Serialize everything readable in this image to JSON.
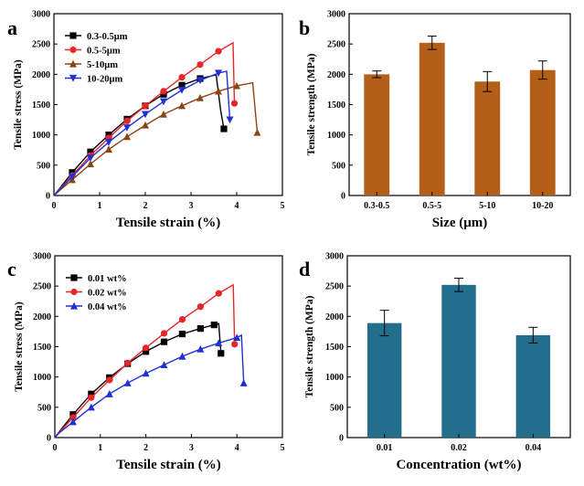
{
  "chart_data": [
    {
      "panel": "a",
      "type": "line",
      "xlabel": "Tensile strain (%)",
      "ylabel": "Tensile stress (MPa)",
      "xlim": [
        0,
        5
      ],
      "ylim": [
        0,
        3000
      ],
      "xticks": [
        0,
        1,
        2,
        3,
        4,
        5
      ],
      "yticks": [
        0,
        500,
        1000,
        1500,
        2000,
        2500,
        3000
      ],
      "legend_position": "top-left",
      "series": [
        {
          "name": "0.3-0.5μm",
          "color": "#000000",
          "marker": "square",
          "x": [
            0,
            0.12,
            0.4,
            0.8,
            1.2,
            1.6,
            2.0,
            2.4,
            2.8,
            3.2,
            3.55,
            3.65,
            3.72
          ],
          "y": [
            0,
            110,
            380,
            720,
            1000,
            1260,
            1480,
            1670,
            1820,
            1930,
            1990,
            1400,
            1100
          ],
          "markers_x": [
            0.4,
            0.8,
            1.2,
            1.6,
            2.0,
            2.4,
            2.8,
            3.2,
            3.72
          ],
          "markers_y": [
            380,
            720,
            1000,
            1260,
            1480,
            1670,
            1820,
            1930,
            1100
          ]
        },
        {
          "name": "0.5-5μm",
          "color": "#e8262a",
          "marker": "circle",
          "x": [
            0,
            0.12,
            0.4,
            0.8,
            1.2,
            1.6,
            2.0,
            2.4,
            2.8,
            3.2,
            3.6,
            3.92,
            3.95
          ],
          "y": [
            0,
            100,
            330,
            660,
            950,
            1230,
            1480,
            1720,
            1950,
            2160,
            2380,
            2520,
            1520
          ],
          "markers_x": [
            0.4,
            0.8,
            1.2,
            1.6,
            2.0,
            2.4,
            2.8,
            3.2,
            3.6,
            3.95
          ],
          "markers_y": [
            330,
            660,
            950,
            1230,
            1480,
            1720,
            1950,
            2160,
            2380,
            1520
          ]
        },
        {
          "name": "5-10μm",
          "color": "#8b4513",
          "marker": "triangle-up",
          "x": [
            0,
            0.12,
            0.4,
            0.8,
            1.2,
            1.6,
            2.0,
            2.4,
            2.8,
            3.2,
            3.6,
            4.0,
            4.35,
            4.45
          ],
          "y": [
            0,
            80,
            260,
            520,
            760,
            970,
            1160,
            1340,
            1480,
            1610,
            1720,
            1810,
            1860,
            1040
          ],
          "markers_x": [
            0.4,
            0.8,
            1.2,
            1.6,
            2.0,
            2.4,
            2.8,
            3.2,
            3.6,
            4.0,
            4.45
          ],
          "markers_y": [
            260,
            520,
            760,
            970,
            1160,
            1340,
            1480,
            1610,
            1720,
            1810,
            1040
          ]
        },
        {
          "name": "10-20μm",
          "color": "#1f30d6",
          "marker": "triangle-down",
          "x": [
            0,
            0.12,
            0.4,
            0.8,
            1.2,
            1.6,
            2.0,
            2.4,
            2.8,
            3.2,
            3.6,
            3.78,
            3.85
          ],
          "y": [
            0,
            90,
            310,
            620,
            880,
            1120,
            1340,
            1550,
            1740,
            1900,
            2020,
            2050,
            1250
          ],
          "markers_x": [
            0.4,
            0.8,
            1.2,
            1.6,
            2.0,
            2.4,
            2.8,
            3.2,
            3.6,
            3.85
          ],
          "markers_y": [
            310,
            620,
            880,
            1120,
            1340,
            1550,
            1740,
            1900,
            2020,
            1250
          ]
        }
      ]
    },
    {
      "panel": "b",
      "type": "bar",
      "xlabel": "Size (μm)",
      "ylabel": "Tensile strength (MPa)",
      "categories": [
        "0.3-0.5",
        "0.5-5",
        "5-10",
        "10-20"
      ],
      "values": [
        2000,
        2520,
        1880,
        2070
      ],
      "errors": [
        55,
        110,
        165,
        150
      ],
      "ylim": [
        0,
        3000
      ],
      "yticks": [
        0,
        500,
        1000,
        1500,
        2000,
        2500,
        3000
      ],
      "bar_color": "#b45f18"
    },
    {
      "panel": "c",
      "type": "line",
      "xlabel": "Tensile strain (%)",
      "ylabel": "Tensile stress (MPa)",
      "xlim": [
        0,
        5
      ],
      "ylim": [
        0,
        3000
      ],
      "xticks": [
        0,
        1,
        2,
        3,
        4,
        5
      ],
      "yticks": [
        0,
        500,
        1000,
        1500,
        2000,
        2500,
        3000
      ],
      "legend_position": "top-left",
      "series": [
        {
          "name": "0.01 wt%",
          "color": "#000000",
          "marker": "square",
          "x": [
            0,
            0.1,
            0.4,
            0.8,
            1.2,
            1.6,
            2.0,
            2.4,
            2.8,
            3.2,
            3.5,
            3.6,
            3.65
          ],
          "y": [
            0,
            100,
            380,
            720,
            990,
            1220,
            1420,
            1580,
            1710,
            1800,
            1860,
            1880,
            1390
          ],
          "markers_x": [
            0.4,
            0.8,
            1.2,
            1.6,
            2.0,
            2.4,
            2.8,
            3.2,
            3.5,
            3.65
          ],
          "markers_y": [
            380,
            720,
            990,
            1220,
            1420,
            1580,
            1710,
            1800,
            1860,
            1390
          ]
        },
        {
          "name": "0.02 wt%",
          "color": "#e8262a",
          "marker": "circle",
          "x": [
            0,
            0.1,
            0.4,
            0.8,
            1.2,
            1.6,
            2.0,
            2.4,
            2.8,
            3.2,
            3.6,
            3.92,
            3.95
          ],
          "y": [
            0,
            90,
            330,
            660,
            950,
            1230,
            1480,
            1720,
            1950,
            2160,
            2380,
            2520,
            1540
          ],
          "markers_x": [
            0.4,
            0.8,
            1.2,
            1.6,
            2.0,
            2.4,
            2.8,
            3.2,
            3.6,
            3.95
          ],
          "markers_y": [
            330,
            660,
            950,
            1230,
            1480,
            1720,
            1950,
            2160,
            2380,
            1540
          ]
        },
        {
          "name": "0.04 wt%",
          "color": "#1f30d6",
          "marker": "triangle-up",
          "x": [
            0,
            0.1,
            0.4,
            0.8,
            1.2,
            1.6,
            2.0,
            2.4,
            2.8,
            3.2,
            3.6,
            4.0,
            4.1,
            4.15
          ],
          "y": [
            0,
            80,
            260,
            500,
            720,
            900,
            1060,
            1200,
            1340,
            1460,
            1560,
            1650,
            1690,
            900
          ],
          "markers_x": [
            0.4,
            0.8,
            1.2,
            1.6,
            2.0,
            2.4,
            2.8,
            3.2,
            3.6,
            4.0,
            4.15
          ],
          "markers_y": [
            260,
            500,
            720,
            900,
            1060,
            1200,
            1340,
            1460,
            1560,
            1650,
            900
          ]
        }
      ]
    },
    {
      "panel": "d",
      "type": "bar",
      "xlabel": "Concentration (wt%)",
      "ylabel": "Tensile strength (MPa)",
      "categories": [
        "0.01",
        "0.02",
        "0.04"
      ],
      "values": [
        1890,
        2520,
        1690
      ],
      "errors": [
        210,
        110,
        130
      ],
      "ylim": [
        0,
        3000
      ],
      "yticks": [
        0,
        500,
        1000,
        1500,
        2000,
        2500,
        3000
      ],
      "bar_color": "#236e8c"
    }
  ]
}
